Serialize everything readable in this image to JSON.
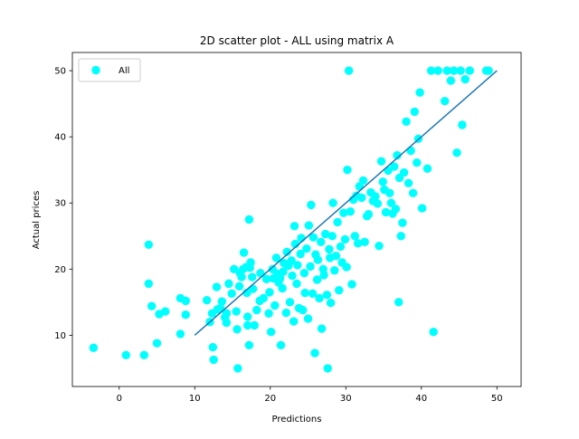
{
  "chart_data": {
    "type": "scatter",
    "title": "2D scatter plot - ALL using matrix A",
    "xlabel": "Predictions",
    "ylabel": "Actual prices",
    "xlim": [
      -6.2,
      53.2
    ],
    "ylim": [
      2.25,
      52.75
    ],
    "xticks": [
      0,
      10,
      20,
      30,
      40,
      50
    ],
    "yticks": [
      10,
      20,
      30,
      40,
      50
    ],
    "grid": false,
    "legend_position": "top-left",
    "series": [
      {
        "name": "All",
        "kind": "scatter",
        "color": "#00ffff",
        "points": [
          [
            -3.4,
            8.1
          ],
          [
            0.9,
            7.0
          ],
          [
            3.3,
            7.0
          ],
          [
            3.9,
            23.7
          ],
          [
            3.9,
            17.8
          ],
          [
            4.3,
            14.4
          ],
          [
            5.0,
            8.8
          ],
          [
            5.3,
            13.2
          ],
          [
            6.1,
            13.6
          ],
          [
            8.1,
            15.6
          ],
          [
            8.1,
            10.2
          ],
          [
            8.8,
            15.2
          ],
          [
            8.8,
            13.1
          ],
          [
            11.6,
            15.3
          ],
          [
            12.0,
            12.0
          ],
          [
            12.3,
            13.3
          ],
          [
            12.4,
            8.2
          ],
          [
            12.5,
            6.3
          ],
          [
            12.9,
            17.3
          ],
          [
            13.0,
            13.9
          ],
          [
            13.4,
            14.1
          ],
          [
            13.6,
            15.1
          ],
          [
            14.0,
            12.7
          ],
          [
            14.2,
            11.9
          ],
          [
            14.2,
            13.3
          ],
          [
            14.5,
            17.8
          ],
          [
            14.9,
            16.3
          ],
          [
            15.2,
            20.0
          ],
          [
            15.5,
            13.6
          ],
          [
            15.6,
            10.9
          ],
          [
            15.7,
            5.0
          ],
          [
            15.9,
            17.4
          ],
          [
            16.0,
            19.4
          ],
          [
            16.2,
            18.8
          ],
          [
            16.4,
            20.0
          ],
          [
            16.5,
            22.5
          ],
          [
            16.8,
            20.3
          ],
          [
            16.9,
            16.4
          ],
          [
            17.0,
            12.8
          ],
          [
            17.0,
            11.5
          ],
          [
            17.2,
            27.5
          ],
          [
            17.2,
            8.5
          ],
          [
            17.3,
            20.2
          ],
          [
            17.4,
            21.0
          ],
          [
            17.6,
            18.8
          ],
          [
            17.7,
            17.0
          ],
          [
            17.9,
            11.5
          ],
          [
            18.2,
            13.8
          ],
          [
            18.6,
            15.2
          ],
          [
            18.7,
            19.4
          ],
          [
            19.1,
            15.6
          ],
          [
            19.5,
            18.5
          ],
          [
            19.8,
            13.3
          ],
          [
            19.9,
            16.5
          ],
          [
            20.1,
            10.5
          ],
          [
            20.3,
            20.0
          ],
          [
            20.4,
            18.6
          ],
          [
            20.6,
            14.5
          ],
          [
            20.8,
            21.7
          ],
          [
            20.9,
            19.3
          ],
          [
            21.1,
            18.0
          ],
          [
            21.3,
            18.6
          ],
          [
            21.4,
            8.5
          ],
          [
            21.6,
            17.1
          ],
          [
            21.7,
            19.6
          ],
          [
            21.8,
            20.9
          ],
          [
            22.1,
            13.4
          ],
          [
            22.2,
            22.6
          ],
          [
            22.4,
            20.5
          ],
          [
            22.6,
            15.0
          ],
          [
            22.8,
            21.3
          ],
          [
            22.9,
            19.0
          ],
          [
            23.1,
            12.1
          ],
          [
            23.2,
            26.5
          ],
          [
            23.3,
            23.8
          ],
          [
            23.5,
            17.8
          ],
          [
            23.6,
            20.6
          ],
          [
            23.8,
            14.1
          ],
          [
            24.0,
            22.3
          ],
          [
            24.1,
            24.7
          ],
          [
            24.3,
            13.8
          ],
          [
            24.5,
            19.4
          ],
          [
            24.6,
            16.4
          ],
          [
            24.8,
            23.1
          ],
          [
            25.0,
            12.5
          ],
          [
            25.1,
            26.6
          ],
          [
            25.3,
            20.4
          ],
          [
            25.4,
            29.7
          ],
          [
            25.6,
            16.3
          ],
          [
            25.7,
            24.8
          ],
          [
            25.9,
            7.3
          ],
          [
            26.0,
            22.2
          ],
          [
            26.2,
            18.4
          ],
          [
            26.3,
            21.4
          ],
          [
            26.5,
            15.6
          ],
          [
            26.7,
            24.1
          ],
          [
            26.8,
            11.0
          ],
          [
            27.0,
            20.0
          ],
          [
            27.1,
            19.1
          ],
          [
            27.3,
            25.3
          ],
          [
            27.5,
            16.1
          ],
          [
            27.6,
            5.0
          ],
          [
            27.8,
            23.0
          ],
          [
            27.9,
            21.7
          ],
          [
            28.0,
            14.9
          ],
          [
            28.2,
            25.0
          ],
          [
            28.3,
            30.0
          ],
          [
            28.5,
            19.8
          ],
          [
            28.7,
            22.0
          ],
          [
            28.9,
            27.1
          ],
          [
            29.1,
            16.8
          ],
          [
            29.3,
            23.4
          ],
          [
            29.5,
            21.0
          ],
          [
            29.7,
            28.5
          ],
          [
            29.9,
            24.5
          ],
          [
            30.1,
            20.3
          ],
          [
            30.2,
            35.0
          ],
          [
            30.4,
            50.0
          ],
          [
            30.6,
            28.7
          ],
          [
            30.8,
            17.7
          ],
          [
            31.0,
            30.5
          ],
          [
            31.2,
            25.0
          ],
          [
            31.4,
            31.1
          ],
          [
            31.6,
            23.9
          ],
          [
            31.8,
            32.5
          ],
          [
            32.1,
            30.8
          ],
          [
            32.3,
            33.4
          ],
          [
            32.5,
            24.1
          ],
          [
            32.8,
            28.0
          ],
          [
            33.0,
            28.3
          ],
          [
            33.3,
            31.6
          ],
          [
            33.6,
            30.3
          ],
          [
            33.9,
            31.0
          ],
          [
            34.2,
            29.9
          ],
          [
            34.4,
            23.5
          ],
          [
            34.7,
            36.3
          ],
          [
            34.9,
            33.2
          ],
          [
            35.1,
            32.0
          ],
          [
            35.3,
            28.6
          ],
          [
            35.6,
            34.9
          ],
          [
            35.8,
            31.5
          ],
          [
            36.0,
            30.0
          ],
          [
            36.2,
            28.4
          ],
          [
            36.4,
            35.5
          ],
          [
            36.6,
            29.1
          ],
          [
            36.8,
            37.2
          ],
          [
            37.0,
            15.0
          ],
          [
            37.1,
            33.8
          ],
          [
            37.3,
            25.0
          ],
          [
            37.5,
            27.0
          ],
          [
            37.7,
            34.6
          ],
          [
            38.0,
            42.3
          ],
          [
            38.3,
            33.0
          ],
          [
            38.6,
            37.9
          ],
          [
            38.9,
            31.5
          ],
          [
            39.1,
            43.8
          ],
          [
            39.4,
            36.1
          ],
          [
            39.6,
            39.7
          ],
          [
            39.8,
            46.7
          ],
          [
            40.1,
            29.2
          ],
          [
            40.8,
            35.2
          ],
          [
            41.3,
            50.0
          ],
          [
            41.6,
            10.5
          ],
          [
            42.2,
            50.0
          ],
          [
            43.1,
            45.4
          ],
          [
            43.4,
            50.0
          ],
          [
            43.9,
            48.5
          ],
          [
            44.3,
            50.0
          ],
          [
            44.7,
            37.6
          ],
          [
            45.2,
            50.0
          ],
          [
            45.4,
            41.8
          ],
          [
            45.8,
            48.7
          ],
          [
            46.4,
            50.0
          ],
          [
            48.6,
            50.0
          ],
          [
            48.9,
            50.0
          ]
        ]
      },
      {
        "name": "",
        "kind": "line",
        "color": "#1f77b4",
        "points": [
          [
            10,
            10
          ],
          [
            50,
            50
          ]
        ]
      }
    ]
  }
}
